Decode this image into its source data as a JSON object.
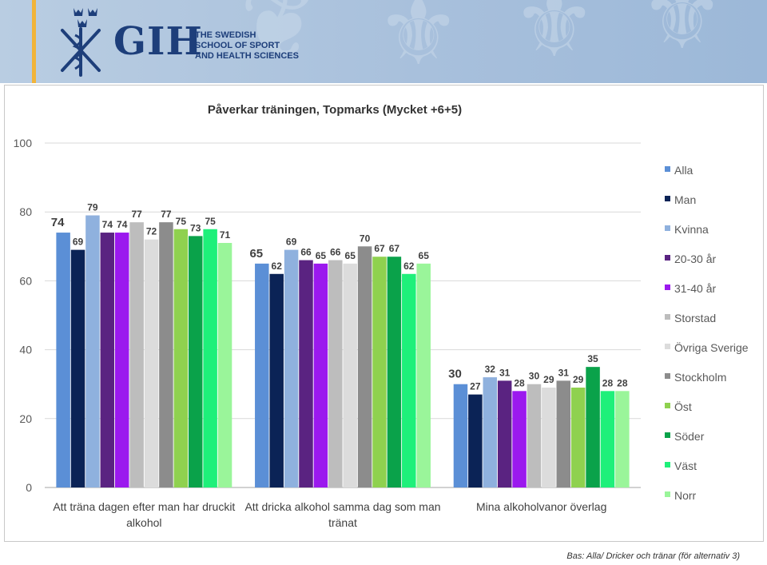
{
  "brand": {
    "name": "GIH",
    "line1": "THE SWEDISH",
    "line2": "SCHOOL OF SPORT",
    "line3": "AND HEALTH SCIENCES"
  },
  "footer": {
    "note": "Bas: Alla/ Dricker och tränar (för alternativ 3)"
  },
  "chart_data": {
    "type": "bar",
    "title": "Påverkar träningen, Topmarks (Mycket +6+5)",
    "xlabel": "",
    "ylabel": "",
    "ylim": [
      0,
      100
    ],
    "yticks": [
      0,
      20,
      40,
      60,
      80,
      100
    ],
    "grid": true,
    "legend_position": "right",
    "categories": [
      [
        "Att träna dagen efter man har druckit",
        "alkohol"
      ],
      [
        "Att dricka alkohol samma dag som man",
        "tränat"
      ],
      [
        "Mina alkoholvanor överlag"
      ]
    ],
    "series": [
      {
        "name": "Alla",
        "color": "#5b8fd6",
        "values": [
          74,
          65,
          30
        ]
      },
      {
        "name": "Man",
        "color": "#0b2356",
        "values": [
          69,
          62,
          27
        ]
      },
      {
        "name": "Kvinna",
        "color": "#8fb1de",
        "values": [
          79,
          69,
          32
        ]
      },
      {
        "name": "20-30 år",
        "color": "#5a2381",
        "values": [
          74,
          66,
          31
        ]
      },
      {
        "name": "31-40 år",
        "color": "#9b19ee",
        "values": [
          74,
          65,
          28
        ]
      },
      {
        "name": "Storstad",
        "color": "#bdbdbd",
        "values": [
          77,
          66,
          30
        ]
      },
      {
        "name": "Övriga Sverige",
        "color": "#dcdcdc",
        "values": [
          72,
          65,
          29
        ]
      },
      {
        "name": "Stockholm",
        "color": "#8c8c8c",
        "values": [
          77,
          70,
          31
        ]
      },
      {
        "name": "Öst",
        "color": "#8fd14f",
        "values": [
          75,
          67,
          29
        ]
      },
      {
        "name": "Söder",
        "color": "#0aa24a",
        "values": [
          73,
          67,
          35
        ]
      },
      {
        "name": "Väst",
        "color": "#1ef07a",
        "values": [
          75,
          62,
          28
        ]
      },
      {
        "name": "Norr",
        "color": "#9af59a",
        "values": [
          71,
          65,
          28
        ]
      }
    ]
  }
}
